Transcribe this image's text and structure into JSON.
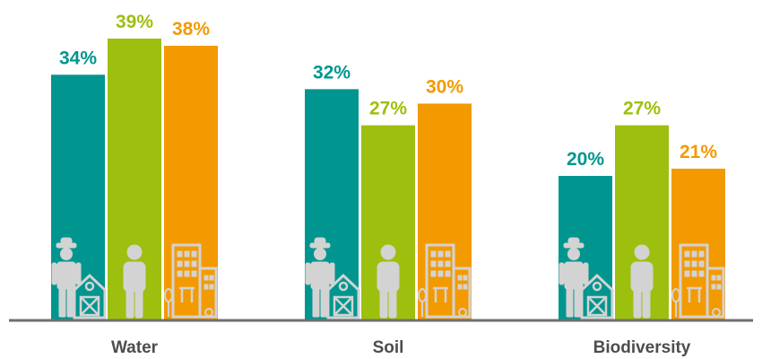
{
  "chart_data": {
    "type": "bar",
    "categories": [
      "Water",
      "Soil",
      "Biodiversity"
    ],
    "series": [
      {
        "values": [
          34,
          32,
          20
        ],
        "color": "#00968f",
        "icon": "farmer-barn-icon"
      },
      {
        "values": [
          39,
          27,
          27
        ],
        "color": "#9dbf0e",
        "icon": "person-icon"
      },
      {
        "values": [
          38,
          30,
          21
        ],
        "color": "#f39a00",
        "icon": "city-buildings-icon"
      }
    ],
    "value_suffix": "%",
    "ylim": [
      0,
      39
    ],
    "grid": false,
    "legend": "none",
    "baseline_color": "#6e6e6e",
    "icon_color": "#d3d3d3",
    "category_label_color": "#4d4d4d"
  }
}
